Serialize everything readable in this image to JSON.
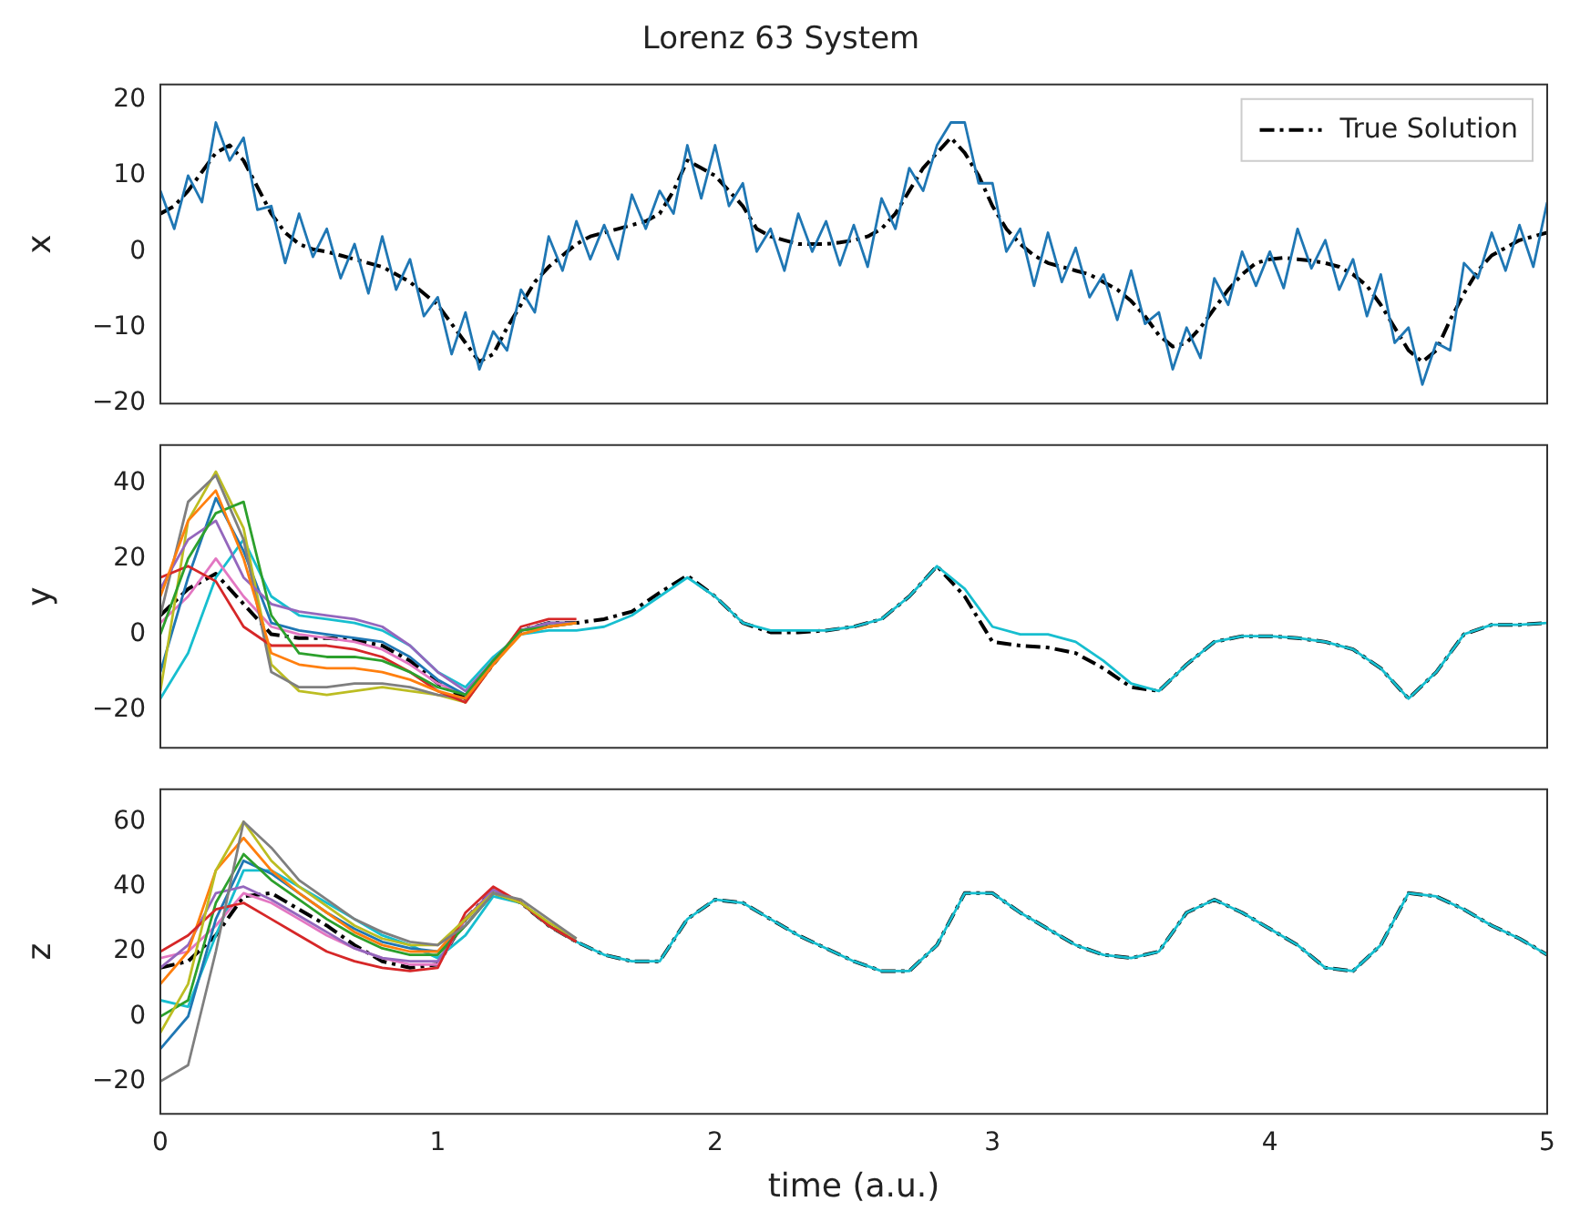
{
  "chart_data": [
    {
      "type": "line",
      "title": "Lorenz 63 System",
      "ylabel": "x",
      "xlim": [
        0,
        5
      ],
      "ylim": [
        -20,
        22
      ],
      "yticks": [
        -20,
        -10,
        0,
        10,
        20
      ],
      "tick_labels": "y",
      "legend": "top right",
      "x": [
        0,
        0.05,
        0.1,
        0.15,
        0.2,
        0.25,
        0.3,
        0.35,
        0.4,
        0.45,
        0.5,
        0.55,
        0.6,
        0.65,
        0.7,
        0.75,
        0.8,
        0.85,
        0.9,
        0.95,
        1,
        1.05,
        1.1,
        1.15,
        1.2,
        1.25,
        1.3,
        1.35,
        1.4,
        1.45,
        1.5,
        1.55,
        1.6,
        1.65,
        1.7,
        1.75,
        1.8,
        1.85,
        1.9,
        1.95,
        2,
        2.05,
        2.1,
        2.15,
        2.2,
        2.25,
        2.3,
        2.35,
        2.4,
        2.45,
        2.5,
        2.55,
        2.6,
        2.65,
        2.7,
        2.75,
        2.8,
        2.85,
        2.9,
        2.95,
        3,
        3.05,
        3.1,
        3.15,
        3.2,
        3.25,
        3.3,
        3.35,
        3.4,
        3.45,
        3.5,
        3.55,
        3.6,
        3.65,
        3.7,
        3.75,
        3.8,
        3.85,
        3.9,
        3.95,
        4,
        4.05,
        4.1,
        4.15,
        4.2,
        4.25,
        4.3,
        4.35,
        4.4,
        4.45,
        4.5,
        4.55,
        4.6,
        4.65,
        4.7,
        4.75,
        4.8,
        4.85,
        4.9,
        4.95,
        5
      ],
      "series": [
        {
          "color": "#1f77b4",
          "values": [
            8,
            3,
            10,
            6.5,
            17,
            12,
            15,
            5.5,
            6,
            -1.5,
            5,
            -0.7,
            3,
            -3.5,
            1,
            -5.5,
            2,
            -5,
            -1,
            -8.5,
            -6,
            -13.5,
            -8,
            -15.5,
            -10.5,
            -13,
            -5,
            -8,
            2,
            -2.5,
            4,
            -1,
            3.5,
            -1,
            7.5,
            3,
            8,
            5,
            14,
            7,
            14,
            6,
            9,
            0,
            3,
            -2.5,
            5,
            0,
            4,
            -1.8,
            3.5,
            -2,
            7,
            3,
            11,
            8,
            14,
            17,
            17,
            9,
            9,
            0,
            3,
            -4.5,
            2.5,
            -4,
            0.5,
            -6,
            -3,
            -9,
            -2.5,
            -9.5,
            -8,
            -15.5,
            -10,
            -14,
            -3.5,
            -7,
            0,
            -4.5,
            0,
            -4.8,
            3,
            -2.2,
            1.5,
            -5,
            -1,
            -8.5,
            -3,
            -12,
            -10,
            -17.5,
            -12,
            -13,
            -1.5,
            -3.5,
            2.5,
            -2.5,
            3.5,
            -2,
            6.5
          ]
        },
        {
          "name": "True Solution",
          "color": "#000000",
          "line_style": "dashed",
          "values": [
            5,
            6,
            8,
            10.5,
            13,
            14,
            12,
            8.5,
            5,
            2.5,
            1,
            0.3,
            0,
            -0.5,
            -1,
            -1.5,
            -2,
            -3,
            -4,
            -5.5,
            -7,
            -9.5,
            -12,
            -14.5,
            -13.5,
            -10,
            -7,
            -4,
            -2,
            -0.5,
            1,
            2,
            2.5,
            3,
            3.5,
            4,
            5,
            8,
            12,
            11,
            10,
            8,
            6,
            3,
            2,
            1.5,
            1,
            1,
            1,
            1.2,
            1.5,
            2,
            3,
            5,
            8,
            11,
            13,
            15,
            13,
            10,
            6,
            3,
            1,
            -0.5,
            -1.5,
            -2,
            -2.5,
            -3,
            -4,
            -5,
            -6.5,
            -8.5,
            -11,
            -12.5,
            -12,
            -10,
            -7.5,
            -5,
            -3,
            -1.5,
            -1,
            -0.8,
            -1,
            -1.2,
            -1.5,
            -2,
            -3,
            -4.5,
            -7,
            -10,
            -13,
            -14.5,
            -13,
            -9,
            -5.5,
            -2.5,
            -0.5,
            0.5,
            1.5,
            2,
            2.5
          ]
        }
      ]
    },
    {
      "type": "line",
      "ylabel": "y",
      "xlim": [
        0,
        5
      ],
      "ylim": [
        -30,
        50
      ],
      "yticks": [
        -20,
        0,
        20,
        40
      ],
      "tick_labels": "y",
      "x": [
        0,
        0.1,
        0.2,
        0.3,
        0.4,
        0.5,
        0.6,
        0.7,
        0.8,
        0.9,
        1,
        1.1,
        1.2,
        1.3,
        1.4,
        1.5,
        1.6,
        1.7,
        1.8,
        1.9,
        2,
        2.1,
        2.2,
        2.3,
        2.4,
        2.5,
        2.6,
        2.7,
        2.8,
        2.9,
        3,
        3.1,
        3.2,
        3.3,
        3.4,
        3.5,
        3.6,
        3.7,
        3.8,
        3.9,
        4,
        4.1,
        4.2,
        4.3,
        4.4,
        4.5,
        4.6,
        4.7,
        4.8,
        4.9,
        5
      ],
      "series": [
        {
          "color": "#ff7f0e",
          "x": [
            0,
            0.1,
            0.2,
            0.3,
            0.4,
            0.5,
            0.6,
            0.7,
            0.8,
            0.9,
            1,
            1.1,
            1.2,
            1.3,
            1.4,
            1.5
          ],
          "values": [
            10,
            30,
            38,
            20,
            -5,
            -8,
            -9,
            -9,
            -10,
            -12,
            -15,
            -17,
            -8,
            0,
            2,
            3
          ]
        },
        {
          "color": "#2ca02c",
          "x": [
            0,
            0.1,
            0.2,
            0.3,
            0.4,
            0.5,
            0.6,
            0.7,
            0.8,
            0.9,
            1,
            1.1,
            1.2,
            1.3,
            1.4,
            1.5
          ],
          "values": [
            0,
            20,
            32,
            35,
            5,
            -5,
            -6,
            -6,
            -7,
            -10,
            -14,
            -16,
            -7,
            1,
            2,
            3
          ]
        },
        {
          "color": "#d62728",
          "x": [
            0,
            0.1,
            0.2,
            0.3,
            0.4,
            0.5,
            0.6,
            0.7,
            0.8,
            0.9,
            1,
            1.1,
            1.2,
            1.3,
            1.4,
            1.5
          ],
          "values": [
            15,
            18,
            14,
            2,
            -3,
            -3,
            -3,
            -4,
            -6,
            -10,
            -15,
            -18,
            -8,
            2,
            4,
            4
          ]
        },
        {
          "color": "#9467bd",
          "x": [
            0,
            0.1,
            0.2,
            0.3,
            0.4,
            0.5,
            0.6,
            0.7,
            0.8,
            0.9,
            1,
            1.1,
            1.2,
            1.3,
            1.4,
            1.5
          ],
          "values": [
            12,
            25,
            30,
            15,
            8,
            6,
            5,
            4,
            2,
            -3,
            -10,
            -15,
            -7,
            1,
            3,
            3
          ]
        },
        {
          "color": "#7f7f7f",
          "x": [
            0,
            0.1,
            0.2,
            0.3,
            0.4,
            0.5,
            0.6,
            0.7,
            0.8,
            0.9,
            1,
            1.1,
            1.2,
            1.3,
            1.4,
            1.5
          ],
          "values": [
            5,
            35,
            42,
            25,
            -10,
            -14,
            -14,
            -13,
            -13,
            -14,
            -16,
            -17,
            -7,
            1,
            3,
            3
          ]
        },
        {
          "color": "#bcbd22",
          "x": [
            0,
            0.1,
            0.2,
            0.3,
            0.4,
            0.5,
            0.6,
            0.7,
            0.8,
            0.9,
            1,
            1.1,
            1.2,
            1.3,
            1.4,
            1.5
          ],
          "values": [
            -15,
            30,
            43,
            28,
            -8,
            -15,
            -16,
            -15,
            -14,
            -15,
            -16,
            -18,
            -8,
            0,
            2,
            3
          ]
        },
        {
          "color": "#1f77b4",
          "x": [
            0,
            0.1,
            0.2,
            0.3,
            0.4,
            0.5,
            0.6,
            0.7,
            0.8,
            0.9,
            1,
            1.1,
            1.2,
            1.3,
            1.4,
            1.5
          ],
          "values": [
            -10,
            15,
            36,
            22,
            3,
            1,
            0,
            -1,
            -2,
            -6,
            -12,
            -16,
            -7,
            1,
            3,
            3
          ]
        },
        {
          "color": "#e377c2",
          "x": [
            0,
            0.1,
            0.2,
            0.3,
            0.4,
            0.5,
            0.6,
            0.7,
            0.8,
            0.9,
            1,
            1.1,
            1.2,
            1.3,
            1.4,
            1.5
          ],
          "values": [
            3,
            10,
            20,
            10,
            2,
            0,
            -1,
            -2,
            -4,
            -8,
            -13,
            -16,
            -7,
            1,
            2,
            3
          ]
        },
        {
          "color": "#17becf",
          "values": [
            -17,
            -5,
            15,
            25,
            10,
            5,
            4,
            3,
            1,
            -3,
            -10,
            -14,
            -6,
            0,
            1,
            1,
            2,
            5,
            10,
            15,
            10,
            3,
            1,
            1,
            1,
            2,
            4,
            10,
            18,
            12,
            2,
            0,
            0,
            -2,
            -7,
            -13,
            -15,
            -8,
            -2,
            -0.5,
            -0.5,
            -1,
            -2,
            -4,
            -9,
            -17,
            -10,
            0,
            2.5,
            2.5,
            3
          ]
        },
        {
          "color": "#000000",
          "line_style": "dashed",
          "values": [
            5,
            12,
            16,
            8,
            0,
            -1,
            -1,
            -1.5,
            -3,
            -7,
            -13,
            -17,
            -8,
            1,
            3,
            3,
            4,
            6,
            11,
            15.5,
            10,
            3,
            0.5,
            0.5,
            1,
            2,
            4,
            10,
            18,
            10,
            -2,
            -3,
            -3.5,
            -5,
            -9,
            -14,
            -15,
            -8,
            -2,
            -0.5,
            -0.5,
            -1,
            -2,
            -4,
            -9,
            -17,
            -10,
            0,
            2.5,
            2.5,
            3
          ]
        }
      ]
    },
    {
      "type": "line",
      "ylabel": "z",
      "xlabel": "time (a.u.)",
      "xlim": [
        0,
        5
      ],
      "xticks": [
        0,
        1,
        2,
        3,
        4,
        5
      ],
      "ylim": [
        -30,
        70
      ],
      "yticks": [
        -20,
        0,
        20,
        40,
        60
      ],
      "x": [
        0,
        0.1,
        0.2,
        0.3,
        0.4,
        0.5,
        0.6,
        0.7,
        0.8,
        0.9,
        1,
        1.1,
        1.2,
        1.3,
        1.4,
        1.5,
        1.6,
        1.7,
        1.8,
        1.9,
        2,
        2.1,
        2.2,
        2.3,
        2.4,
        2.5,
        2.6,
        2.7,
        2.8,
        2.9,
        3,
        3.1,
        3.2,
        3.3,
        3.4,
        3.5,
        3.6,
        3.7,
        3.8,
        3.9,
        4,
        4.1,
        4.2,
        4.3,
        4.4,
        4.5,
        4.6,
        4.7,
        4.8,
        4.9,
        5
      ],
      "series": [
        {
          "color": "#7f7f7f",
          "x": [
            0,
            0.1,
            0.2,
            0.3,
            0.4,
            0.5,
            0.6,
            0.7,
            0.8,
            0.9,
            1,
            1.1,
            1.2,
            1.3,
            1.4,
            1.5
          ],
          "values": [
            -20,
            -15,
            20,
            60,
            52,
            42,
            36,
            30,
            26,
            23,
            22,
            28,
            38,
            36,
            30,
            24
          ]
        },
        {
          "color": "#bcbd22",
          "x": [
            0,
            0.1,
            0.2,
            0.3,
            0.4,
            0.5,
            0.6,
            0.7,
            0.8,
            0.9,
            1,
            1.1,
            1.2,
            1.3,
            1.4,
            1.5
          ],
          "values": [
            -5,
            10,
            45,
            60,
            48,
            40,
            34,
            28,
            24,
            22,
            22,
            30,
            38,
            35,
            29,
            24
          ]
        },
        {
          "color": "#d62728",
          "x": [
            0,
            0.1,
            0.2,
            0.3,
            0.4,
            0.5,
            0.6,
            0.7,
            0.8,
            0.9,
            1,
            1.1,
            1.2,
            1.3,
            1.4,
            1.5
          ],
          "values": [
            20,
            25,
            33,
            35,
            30,
            25,
            20,
            17,
            15,
            14,
            15,
            32,
            40,
            35,
            28,
            23
          ]
        },
        {
          "color": "#2ca02c",
          "x": [
            0,
            0.1,
            0.2,
            0.3,
            0.4,
            0.5,
            0.6,
            0.7,
            0.8,
            0.9,
            1,
            1.1,
            1.2,
            1.3,
            1.4,
            1.5
          ],
          "values": [
            0,
            5,
            35,
            50,
            42,
            36,
            30,
            25,
            21,
            19,
            19,
            28,
            38,
            35,
            28,
            23
          ]
        },
        {
          "color": "#ff7f0e",
          "x": [
            0,
            0.1,
            0.2,
            0.3,
            0.4,
            0.5,
            0.6,
            0.7,
            0.8,
            0.9,
            1,
            1.1,
            1.2
          ],
          "values": [
            10,
            20,
            45,
            55,
            45,
            38,
            32,
            26,
            22,
            20,
            20,
            30,
            38
          ]
        },
        {
          "color": "#9467bd",
          "x": [
            0,
            0.1,
            0.2,
            0.3,
            0.4,
            0.5,
            0.6,
            0.7,
            0.8,
            0.9,
            1,
            1.1,
            1.2,
            1.3,
            1.4,
            1.5
          ],
          "values": [
            15,
            22,
            38,
            40,
            36,
            31,
            26,
            21,
            18,
            17,
            17,
            30,
            39,
            35,
            28,
            23
          ]
        },
        {
          "color": "#1f77b4",
          "x": [
            0,
            0.1,
            0.2,
            0.3,
            0.4,
            0.5,
            0.6,
            0.7,
            0.8,
            0.9,
            1,
            1.1,
            1.2,
            1.3,
            1.4,
            1.5
          ],
          "values": [
            -10,
            0,
            30,
            48,
            44,
            38,
            32,
            27,
            23,
            21,
            20,
            28,
            38,
            35,
            28,
            23
          ]
        },
        {
          "color": "#e377c2",
          "x": [
            0,
            0.1,
            0.2,
            0.3,
            0.4,
            0.5,
            0.6,
            0.7,
            0.8,
            0.9,
            1,
            1.1,
            1.2,
            1.3,
            1.4,
            1.5
          ],
          "values": [
            18,
            20,
            28,
            38,
            35,
            30,
            25,
            21,
            18,
            16,
            16,
            30,
            39,
            35,
            28,
            23
          ]
        },
        {
          "color": "#17becf",
          "values": [
            5,
            3,
            25,
            45,
            45,
            40,
            35,
            30,
            25,
            22,
            18,
            25,
            37,
            35,
            28,
            23,
            19,
            17,
            17,
            30,
            36,
            35,
            30,
            25,
            21,
            17,
            14,
            14,
            22,
            38,
            38,
            32,
            27,
            22,
            19,
            18,
            20,
            32,
            36,
            32,
            27,
            22,
            15,
            14,
            22,
            38,
            37,
            33,
            28,
            24,
            19
          ]
        },
        {
          "color": "#000000",
          "line_style": "dashed",
          "values": [
            15,
            17,
            25,
            37,
            38,
            33,
            28,
            22,
            17,
            15,
            16,
            30,
            39,
            35,
            28,
            23,
            19,
            17,
            17,
            30,
            36,
            35,
            30,
            25,
            21,
            17,
            14,
            14,
            22,
            38,
            38,
            32,
            27,
            22,
            19,
            18,
            20,
            32,
            36,
            32,
            27,
            22,
            15,
            14,
            22,
            38,
            37,
            33,
            28,
            24,
            19
          ]
        }
      ]
    }
  ]
}
